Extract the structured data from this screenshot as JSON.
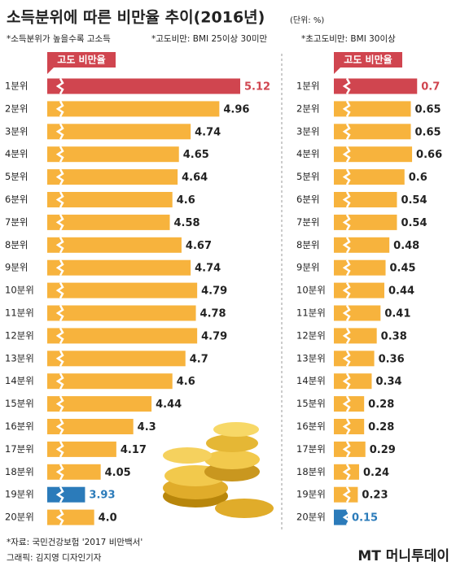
{
  "header": {
    "title": "소득분위에 따른 비만율 추이(2016년)",
    "unit": "(단위: %)",
    "notes": [
      "*소득분위가 높을수록 고소득",
      "*고도비만: BMI 25이상 30미만",
      "*초고도비만: BMI 30이상"
    ]
  },
  "chart_data": [
    {
      "type": "bar",
      "orientation": "horizontal",
      "title": "고도 비만율",
      "categories": [
        "1분위",
        "2분위",
        "3분위",
        "4분위",
        "5분위",
        "6분위",
        "7분위",
        "8분위",
        "9분위",
        "10분위",
        "11분위",
        "12분위",
        "13분위",
        "14분위",
        "15분위",
        "16분위",
        "17분위",
        "18분위",
        "19분위",
        "20분위"
      ],
      "values": [
        5.12,
        4.96,
        4.74,
        4.65,
        4.64,
        4.6,
        4.58,
        4.67,
        4.74,
        4.79,
        4.78,
        4.79,
        4.7,
        4.6,
        4.44,
        4.3,
        4.17,
        4.05,
        3.93,
        4.0
      ],
      "value_labels": [
        "5.12",
        "4.96",
        "4.74",
        "4.65",
        "4.64",
        "4.6",
        "4.58",
        "4.67",
        "4.74",
        "4.79",
        "4.78",
        "4.79",
        "4.7",
        "4.6",
        "4.44",
        "4.3",
        "4.17",
        "4.05",
        "3.93",
        "4.0"
      ],
      "color": "#f7b33d",
      "colors": [
        "#d0454f",
        "#f7b33d",
        "#f7b33d",
        "#f7b33d",
        "#f7b33d",
        "#f7b33d",
        "#f7b33d",
        "#f7b33d",
        "#f7b33d",
        "#f7b33d",
        "#f7b33d",
        "#f7b33d",
        "#f7b33d",
        "#f7b33d",
        "#f7b33d",
        "#f7b33d",
        "#f7b33d",
        "#f7b33d",
        "#2b7bba",
        "#f7b33d"
      ],
      "xlim": [
        3.64,
        5.22
      ]
    },
    {
      "type": "bar",
      "orientation": "horizontal",
      "title": "고도 비만율",
      "categories": [
        "1분위",
        "2분위",
        "3분위",
        "4분위",
        "5분위",
        "6분위",
        "7분위",
        "8분위",
        "9분위",
        "10분위",
        "11분위",
        "12분위",
        "13분위",
        "14분위",
        "15분위",
        "16분위",
        "17분위",
        "18분위",
        "19분위",
        "20분위"
      ],
      "values": [
        0.7,
        0.65,
        0.65,
        0.66,
        0.6,
        0.54,
        0.54,
        0.48,
        0.45,
        0.44,
        0.41,
        0.38,
        0.36,
        0.34,
        0.28,
        0.28,
        0.29,
        0.24,
        0.23,
        0.15
      ],
      "color": "#f7b33d",
      "colors": [
        "#d0454f",
        "#f7b33d",
        "#f7b33d",
        "#f7b33d",
        "#f7b33d",
        "#f7b33d",
        "#f7b33d",
        "#f7b33d",
        "#f7b33d",
        "#f7b33d",
        "#f7b33d",
        "#f7b33d",
        "#f7b33d",
        "#f7b33d",
        "#f7b33d",
        "#f7b33d",
        "#f7b33d",
        "#f7b33d",
        "#f7b33d",
        "#2b7bba"
      ],
      "xlim": [
        0.04,
        0.75
      ]
    }
  ],
  "footer": {
    "source": "*자료: 국민건강보험 '2017 비만백서'",
    "credit": "그래픽: 김지영 디자인기자",
    "logo": "MT 머니투데이"
  }
}
